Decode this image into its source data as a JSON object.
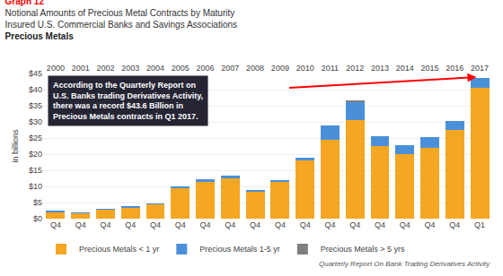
{
  "chart_data": {
    "type": "bar",
    "title": [
      "Graph 12",
      "Notional Amounts of Precious Metal Contracts by Maturity",
      "Insured U.S. Commercial Banks and Savings Associations"
    ],
    "subtitle": "Precious Metals",
    "ylabel": "in billions",
    "categories": [
      [
        "2000",
        "Q4"
      ],
      [
        "2001",
        "Q4"
      ],
      [
        "2002",
        "Q4"
      ],
      [
        "2003",
        "Q4"
      ],
      [
        "2004",
        "Q4"
      ],
      [
        "2005",
        "Q4"
      ],
      [
        "2006",
        "Q4"
      ],
      [
        "2007",
        "Q4"
      ],
      [
        "2008",
        "Q4"
      ],
      [
        "2009",
        "Q4"
      ],
      [
        "2010",
        "Q4"
      ],
      [
        "2011",
        "Q4"
      ],
      [
        "2012",
        "Q4"
      ],
      [
        "2013",
        "Q4"
      ],
      [
        "2014",
        "Q4"
      ],
      [
        "2015",
        "Q4"
      ],
      [
        "2016",
        "Q4"
      ],
      [
        "2017",
        "Q1"
      ]
    ],
    "series": [
      {
        "name": "Precious Metals < 1 yr",
        "color": "#F5A623",
        "values": [
          2.2,
          1.7,
          2.8,
          3.5,
          4.5,
          9.5,
          11.5,
          12.5,
          8.5,
          11.5,
          18.0,
          24.5,
          30.5,
          22.5,
          20.0,
          22.0,
          27.5,
          40.5
        ]
      },
      {
        "name": "Precious Metals 1-5 yr",
        "color": "#4A90D9",
        "values": [
          0.1,
          0.1,
          0.1,
          0.2,
          0.2,
          0.5,
          0.8,
          0.8,
          0.5,
          0.5,
          1.0,
          4.5,
          5.8,
          3.0,
          2.8,
          3.2,
          2.8,
          3.0
        ]
      },
      {
        "name": "Precious Metals > 5 yrs",
        "color": "#7f7f7f",
        "values": [
          0.0,
          0.0,
          0.0,
          0.0,
          0.0,
          0.0,
          0.0,
          0.0,
          0.0,
          0.0,
          0.0,
          0.0,
          0.1,
          0.0,
          0.0,
          0.0,
          0.0,
          0.0
        ]
      }
    ],
    "stacked": true,
    "ylim": [
      0,
      45
    ],
    "yticks": [
      {
        "value": 0,
        "label": "$0"
      },
      {
        "value": 5,
        "label": "$5"
      },
      {
        "value": 10,
        "label": "$10"
      },
      {
        "value": 15,
        "label": "$15"
      },
      {
        "value": 20,
        "label": "$20"
      },
      {
        "value": 25,
        "label": "$25"
      },
      {
        "value": 30,
        "label": "$30"
      },
      {
        "value": 35,
        "label": "$35"
      },
      {
        "value": 40,
        "label": "$40"
      },
      {
        "value": 45,
        "label": "$45"
      }
    ],
    "grid": true,
    "legend": "bottom",
    "annotations": [
      "According to the Quarterly Report on\nU.S. Banks trading Derivatives Activity,\nthere was a record $43.6 Billion in\nPrecious Metals contracts in Q1 2017.",
      "Quarterly Report On Bank Trading Derivatives Activity"
    ]
  }
}
